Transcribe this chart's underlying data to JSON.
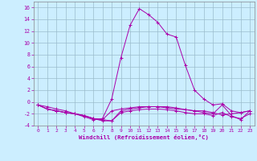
{
  "x": [
    0,
    1,
    2,
    3,
    4,
    5,
    6,
    7,
    8,
    9,
    10,
    11,
    12,
    13,
    14,
    15,
    16,
    17,
    18,
    19,
    20,
    21,
    22,
    23
  ],
  "line1": [
    -0.5,
    -0.8,
    -1.2,
    -1.5,
    -2.0,
    -2.5,
    -3.0,
    -2.8,
    0.5,
    7.5,
    13.0,
    15.8,
    14.8,
    13.5,
    11.5,
    11.0,
    6.2,
    2.0,
    0.5,
    -0.5,
    -0.3,
    -1.5,
    -1.8,
    -1.5
  ],
  "line2": [
    -0.5,
    -1.2,
    -1.5,
    -1.8,
    -2.0,
    -2.3,
    -2.8,
    -3.0,
    -1.5,
    -1.2,
    -1.0,
    -0.8,
    -0.8,
    -0.8,
    -1.0,
    -1.2,
    -1.3,
    -1.5,
    -1.5,
    -1.8,
    -2.2,
    -2.0,
    -1.8,
    -1.5
  ],
  "line3": [
    -0.5,
    -1.2,
    -1.5,
    -1.8,
    -2.0,
    -2.3,
    -2.8,
    -3.0,
    -3.2,
    -1.5,
    -1.2,
    -1.0,
    -0.8,
    -0.8,
    -0.8,
    -1.0,
    -1.3,
    -1.5,
    -1.8,
    -2.0,
    -0.5,
    -2.3,
    -3.0,
    -1.5
  ],
  "line4": [
    -0.5,
    -1.2,
    -1.5,
    -1.8,
    -2.0,
    -2.3,
    -2.8,
    -3.2,
    -3.2,
    -1.8,
    -1.5,
    -1.3,
    -1.2,
    -1.2,
    -1.3,
    -1.5,
    -1.8,
    -2.0,
    -2.0,
    -2.3,
    -1.8,
    -2.5,
    -2.8,
    -2.0
  ],
  "bg_color": "#cceeff",
  "grid_color": "#9bbccc",
  "line_color": "#aa00aa",
  "tick_color": "#aa00aa",
  "xlabel": "Windchill (Refroidissement éolien,°C)",
  "ylim": [
    -4,
    17
  ],
  "xlim": [
    -0.5,
    23.5
  ],
  "yticks": [
    -4,
    -2,
    0,
    2,
    4,
    6,
    8,
    10,
    12,
    14,
    16
  ],
  "xticks": [
    0,
    1,
    2,
    3,
    4,
    5,
    6,
    7,
    8,
    9,
    10,
    11,
    12,
    13,
    14,
    15,
    16,
    17,
    18,
    19,
    20,
    21,
    22,
    23
  ]
}
